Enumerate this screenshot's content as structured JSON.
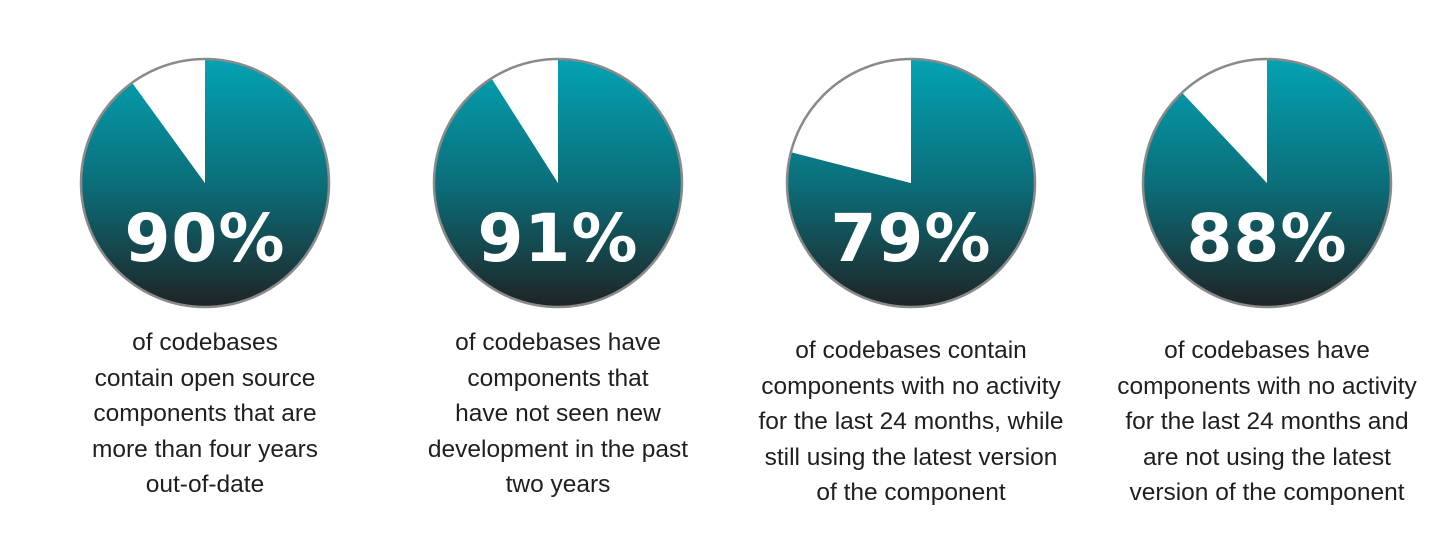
{
  "chart_data": [
    {
      "type": "pie",
      "values": [
        90,
        10
      ],
      "value_label": "90%",
      "caption_lines": [
        "of codebases",
        "contain open source",
        "components that are",
        "more than four years",
        "out-of-date"
      ]
    },
    {
      "type": "pie",
      "values": [
        91,
        9
      ],
      "value_label": "91%",
      "caption_lines": [
        "of codebases have",
        "components that",
        "have not seen new",
        "development in the past",
        "two years"
      ]
    },
    {
      "type": "pie",
      "values": [
        79,
        21
      ],
      "value_label": "79%",
      "caption_lines": [
        "of codebases contain",
        "components with no activity",
        "for the last 24 months, while",
        "still using the latest version",
        "of the component"
      ]
    },
    {
      "type": "pie",
      "values": [
        88,
        12
      ],
      "value_label": "88%",
      "caption_lines": [
        "of codebases have",
        "components with no activity",
        "for the last 24 months and",
        "are not using the latest",
        "version of the component"
      ]
    }
  ],
  "colors": {
    "slice_gradient_top": "#03a3b4",
    "slice_gradient_mid": "#0b6f7a",
    "slice_gradient_bottom": "#1e2426",
    "remainder": "#ffffff",
    "outline": "#8a8a8a",
    "caption_text": "#1f1f1f",
    "value_text": "#ffffff"
  }
}
